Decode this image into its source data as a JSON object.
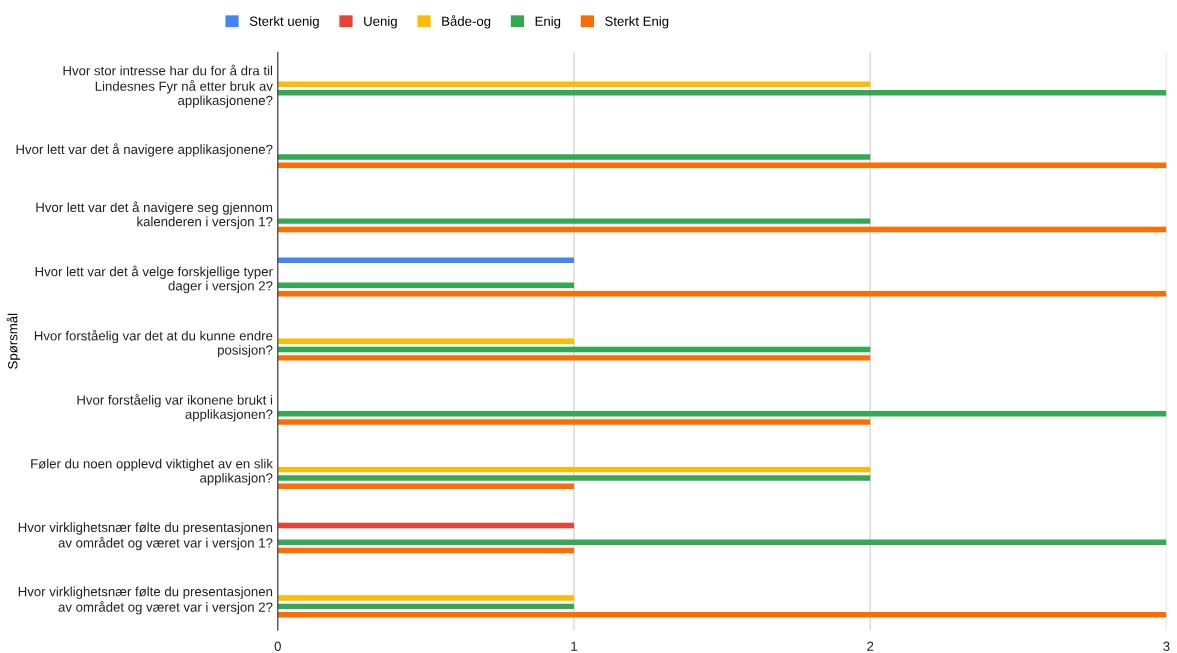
{
  "chart_data": {
    "type": "bar",
    "orientation": "horizontal",
    "ylabel": "Spørsmål",
    "categories": [
      "Hvor stor intresse har du for å dra til Lindesnes Fyr nå etter bruk av applikasjonene?",
      "Hvor lett var det å navigere applikasjonene?",
      "Hvor lett var det å navigere seg gjennom kalenderen i versjon 1?",
      "Hvor lett var det å velge forskjellige typer dager i versjon 2?",
      "Hvor forståelig var det at du kunne endre posisjon?",
      "Hvor forståelig var ikonene brukt i applikasjonen?",
      "Føler du noen opplevd viktighet av en slik applikasjon?",
      "Hvor virklighetsnær følte du presentasjonen av området og været var i versjon 1?",
      "Hvor virklighetsnær følte du presentasjonen av området og været var i versjon 2?"
    ],
    "series": [
      {
        "name": "Sterkt uenig",
        "color": "#4285f4",
        "values": [
          null,
          null,
          null,
          1,
          null,
          null,
          null,
          null,
          null
        ]
      },
      {
        "name": "Uenig",
        "color": "#ea4335",
        "values": [
          null,
          null,
          null,
          null,
          null,
          null,
          null,
          1,
          null
        ]
      },
      {
        "name": "Både-og",
        "color": "#fbbc04",
        "values": [
          2,
          null,
          null,
          null,
          1,
          null,
          2,
          null,
          1
        ]
      },
      {
        "name": "Enig",
        "color": "#34a853",
        "values": [
          3,
          2,
          2,
          1,
          2,
          3,
          2,
          3,
          1
        ]
      },
      {
        "name": "Sterkt Enig",
        "color": "#ff6d01",
        "values": [
          null,
          3,
          3,
          3,
          2,
          2,
          1,
          1,
          3
        ]
      }
    ],
    "xlim": [
      0,
      3
    ],
    "xticks": [
      0,
      1,
      2,
      3
    ],
    "grid": "x",
    "legend": "top"
  }
}
